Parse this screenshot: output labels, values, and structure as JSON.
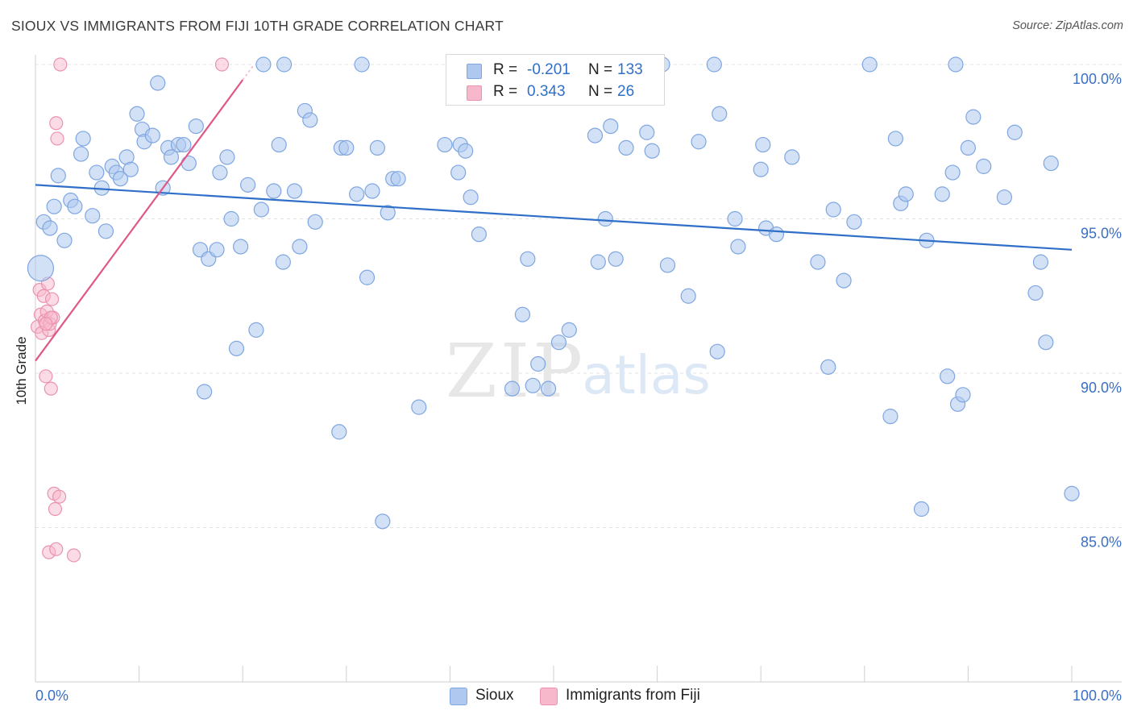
{
  "title": "SIOUX VS IMMIGRANTS FROM FIJI 10TH GRADE CORRELATION CHART",
  "source": "Source: ZipAtlas.com",
  "watermark": {
    "zip": "ZIP",
    "atlas": "atlas"
  },
  "colors": {
    "blue_fill": "#aec8f0",
    "blue_stroke": "#7fa6e0",
    "blue_line": "#2f6fc8",
    "pink_fill": "#f7b8cb",
    "pink_stroke": "#ea93ae",
    "pink_line": "#e0578a",
    "tick_text": "#3b6fc4",
    "grid": "#e3e3e3"
  },
  "legend_top": [
    {
      "r_label": "R =",
      "r_value": "-0.201",
      "n_label": "N =",
      "n_value": "133",
      "color": "#aec8f0",
      "stroke": "#7fa6e0"
    },
    {
      "r_label": "R =",
      "r_value": "0.343",
      "n_label": "N =",
      "n_value": "26",
      "color": "#f7b8cb",
      "stroke": "#ea93ae"
    }
  ],
  "legend_bottom": [
    {
      "label": "Sioux",
      "color": "#aec8f0",
      "stroke": "#7fa6e0"
    },
    {
      "label": "Immigrants from Fiji",
      "color": "#f7b8cb",
      "stroke": "#ea93ae"
    }
  ],
  "chart_data": {
    "type": "scatter",
    "title": "SIOUX VS IMMIGRANTS FROM FIJI 10TH GRADE CORRELATION CHART",
    "xlabel": "",
    "ylabel": "10th Grade",
    "xlim": [
      0,
      100
    ],
    "ylim": [
      80.3,
      100.8
    ],
    "x_tick_labels": [
      {
        "value": 0,
        "label": "0.0%"
      },
      {
        "value": 100,
        "label": "100.0%"
      }
    ],
    "y_ticks": [
      {
        "value": 100,
        "label": "100.0%"
      },
      {
        "value": 95,
        "label": "95.0%"
      },
      {
        "value": 90,
        "label": "90.0%"
      },
      {
        "value": 85,
        "label": "85.0%"
      }
    ],
    "grid": true,
    "series": [
      {
        "name": "Sioux",
        "trendline": {
          "x": [
            0,
            100
          ],
          "y": [
            96.1,
            94.0
          ]
        },
        "points": [
          [
            0.5,
            93.4
          ],
          [
            0.8,
            94.9
          ],
          [
            1.4,
            94.7
          ],
          [
            1.8,
            95.4
          ],
          [
            2.2,
            96.4
          ],
          [
            2.8,
            94.3
          ],
          [
            3.4,
            95.6
          ],
          [
            3.8,
            95.4
          ],
          [
            4.4,
            97.1
          ],
          [
            4.6,
            97.6
          ],
          [
            5.5,
            95.1
          ],
          [
            5.9,
            96.5
          ],
          [
            6.4,
            96.0
          ],
          [
            6.8,
            94.6
          ],
          [
            7.4,
            96.7
          ],
          [
            7.8,
            96.5
          ],
          [
            8.2,
            96.3
          ],
          [
            8.8,
            97.0
          ],
          [
            9.2,
            96.6
          ],
          [
            9.8,
            98.4
          ],
          [
            10.3,
            97.9
          ],
          [
            10.5,
            97.5
          ],
          [
            11.3,
            97.7
          ],
          [
            11.8,
            99.4
          ],
          [
            12.3,
            96.0
          ],
          [
            12.8,
            97.3
          ],
          [
            13.1,
            97.0
          ],
          [
            13.8,
            97.4
          ],
          [
            14.3,
            97.4
          ],
          [
            14.8,
            96.8
          ],
          [
            15.5,
            98.0
          ],
          [
            15.9,
            94.0
          ],
          [
            16.3,
            89.4
          ],
          [
            16.7,
            93.7
          ],
          [
            17.5,
            94.0
          ],
          [
            17.8,
            96.5
          ],
          [
            18.5,
            97.0
          ],
          [
            18.9,
            95.0
          ],
          [
            19.4,
            90.8
          ],
          [
            19.8,
            94.1
          ],
          [
            20.5,
            96.1
          ],
          [
            21.3,
            91.4
          ],
          [
            21.8,
            95.3
          ],
          [
            22.0,
            100.0
          ],
          [
            23.0,
            95.9
          ],
          [
            23.5,
            97.4
          ],
          [
            23.9,
            93.6
          ],
          [
            24.0,
            100.0
          ],
          [
            25.0,
            95.9
          ],
          [
            25.5,
            94.1
          ],
          [
            26.0,
            98.5
          ],
          [
            26.5,
            98.2
          ],
          [
            27.0,
            94.9
          ],
          [
            29.3,
            88.1
          ],
          [
            29.5,
            97.3
          ],
          [
            30.0,
            97.3
          ],
          [
            31.0,
            95.8
          ],
          [
            31.5,
            100.0
          ],
          [
            32.0,
            93.1
          ],
          [
            32.5,
            95.9
          ],
          [
            33.0,
            97.3
          ],
          [
            33.5,
            85.2
          ],
          [
            34.0,
            95.2
          ],
          [
            34.5,
            96.3
          ],
          [
            35.0,
            96.3
          ],
          [
            37.0,
            88.9
          ],
          [
            39.5,
            97.4
          ],
          [
            40.8,
            96.5
          ],
          [
            41.0,
            97.4
          ],
          [
            41.5,
            97.2
          ],
          [
            42.0,
            95.7
          ],
          [
            42.8,
            94.5
          ],
          [
            44.8,
            99.9
          ],
          [
            45.5,
            100.0
          ],
          [
            46.0,
            89.5
          ],
          [
            47.0,
            91.9
          ],
          [
            47.5,
            93.7
          ],
          [
            48.0,
            89.6
          ],
          [
            48.5,
            90.3
          ],
          [
            49.5,
            89.5
          ],
          [
            50.5,
            91.0
          ],
          [
            51.5,
            91.4
          ],
          [
            54.0,
            97.7
          ],
          [
            54.3,
            93.6
          ],
          [
            55.0,
            95.0
          ],
          [
            55.5,
            98.0
          ],
          [
            56.0,
            93.7
          ],
          [
            57.0,
            97.3
          ],
          [
            59.0,
            97.8
          ],
          [
            59.5,
            97.2
          ],
          [
            60.5,
            100.0
          ],
          [
            61.0,
            93.5
          ],
          [
            63.0,
            92.5
          ],
          [
            64.0,
            97.5
          ],
          [
            65.5,
            100.0
          ],
          [
            65.8,
            90.7
          ],
          [
            66.0,
            98.4
          ],
          [
            67.5,
            95.0
          ],
          [
            67.8,
            94.1
          ],
          [
            70.0,
            96.6
          ],
          [
            70.2,
            97.4
          ],
          [
            70.5,
            94.7
          ],
          [
            71.5,
            94.5
          ],
          [
            73.0,
            97.0
          ],
          [
            75.5,
            93.6
          ],
          [
            76.5,
            90.2
          ],
          [
            77.0,
            95.3
          ],
          [
            78.0,
            93.0
          ],
          [
            79.0,
            94.9
          ],
          [
            80.5,
            100.0
          ],
          [
            82.5,
            88.6
          ],
          [
            83.0,
            97.6
          ],
          [
            83.5,
            95.5
          ],
          [
            84.0,
            95.8
          ],
          [
            85.5,
            85.6
          ],
          [
            86.0,
            94.3
          ],
          [
            87.5,
            95.8
          ],
          [
            88.0,
            89.9
          ],
          [
            88.5,
            96.5
          ],
          [
            88.8,
            100.0
          ],
          [
            89.0,
            89.0
          ],
          [
            89.5,
            89.3
          ],
          [
            90.0,
            97.3
          ],
          [
            90.5,
            98.3
          ],
          [
            91.5,
            96.7
          ],
          [
            93.5,
            95.7
          ],
          [
            94.5,
            97.8
          ],
          [
            96.5,
            92.6
          ],
          [
            97.0,
            93.6
          ],
          [
            97.5,
            91.0
          ],
          [
            98.0,
            96.8
          ],
          [
            100.0,
            86.1
          ]
        ]
      },
      {
        "name": "Immigrants from Fiji",
        "trendline": {
          "x": [
            0,
            20
          ],
          "y": [
            90.4,
            99.5
          ]
        },
        "points": [
          [
            0.2,
            91.5
          ],
          [
            0.4,
            92.7
          ],
          [
            0.5,
            91.9
          ],
          [
            0.6,
            91.3
          ],
          [
            0.8,
            92.5
          ],
          [
            0.9,
            91.7
          ],
          [
            1.0,
            89.9
          ],
          [
            1.1,
            92.0
          ],
          [
            1.2,
            92.9
          ],
          [
            1.3,
            91.4
          ],
          [
            1.4,
            91.6
          ],
          [
            1.5,
            89.5
          ],
          [
            1.6,
            92.4
          ],
          [
            1.7,
            91.8
          ],
          [
            1.8,
            86.1
          ],
          [
            1.9,
            85.6
          ],
          [
            2.0,
            98.1
          ],
          [
            2.1,
            97.6
          ],
          [
            2.3,
            86.0
          ],
          [
            2.4,
            100.0
          ],
          [
            1.3,
            84.2
          ],
          [
            2.0,
            84.3
          ],
          [
            3.7,
            84.1
          ],
          [
            18.0,
            100.0
          ],
          [
            1.5,
            91.8
          ],
          [
            1.0,
            91.6
          ]
        ]
      }
    ]
  }
}
